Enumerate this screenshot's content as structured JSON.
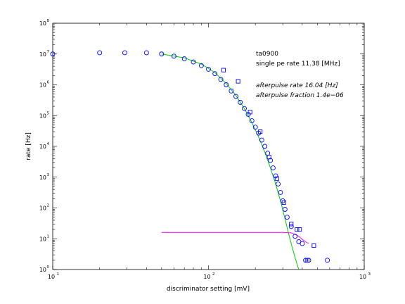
{
  "chart_data": {
    "type": "scatter",
    "xlabel": "discriminator setting [mV]",
    "ylabel": "rate [Hz]",
    "x_scale": "log",
    "y_scale": "log",
    "xlim": [
      10,
      1000
    ],
    "ylim": [
      1,
      100000000
    ],
    "grid": false,
    "legend": "none",
    "x_ticks": [
      {
        "base": "10",
        "exp": "1",
        "value": 10
      },
      {
        "base": "10",
        "exp": "2",
        "value": 100
      },
      {
        "base": "10",
        "exp": "3",
        "value": 1000
      }
    ],
    "y_ticks": [
      {
        "base": "10",
        "exp": "0",
        "value": 1
      },
      {
        "base": "10",
        "exp": "1",
        "value": 10
      },
      {
        "base": "10",
        "exp": "2",
        "value": 100
      },
      {
        "base": "10",
        "exp": "3",
        "value": 1000
      },
      {
        "base": "10",
        "exp": "4",
        "value": 10000
      },
      {
        "base": "10",
        "exp": "5",
        "value": 100000
      },
      {
        "base": "10",
        "exp": "6",
        "value": 1000000
      },
      {
        "base": "10",
        "exp": "7",
        "value": 10000000
      },
      {
        "base": "10",
        "exp": "8",
        "value": 100000000
      }
    ],
    "annotations": [
      {
        "text": "ta0900",
        "style": "normal"
      },
      {
        "text": "single pe rate 11.38 [MHz]",
        "style": "normal"
      },
      {
        "text": "afterpulse rate 16.04 [Hz]",
        "style": "italic"
      },
      {
        "text": "afterpulse fraction 1.4e−06",
        "style": "italic"
      }
    ],
    "series": [
      {
        "marker": "circle",
        "color": "#0000ff",
        "points": [
          [
            10,
            10000000
          ],
          [
            20,
            11000000
          ],
          [
            29,
            11000000
          ],
          [
            40,
            11000000
          ],
          [
            50,
            10000000
          ],
          [
            60,
            8500000
          ],
          [
            70,
            7000000
          ],
          [
            80,
            5500000
          ],
          [
            90,
            4200000
          ],
          [
            100,
            3200000
          ],
          [
            110,
            2300000
          ],
          [
            120,
            1500000
          ],
          [
            130,
            1000000
          ],
          [
            140,
            630000
          ],
          [
            150,
            420000
          ],
          [
            160,
            270000
          ],
          [
            170,
            170000
          ],
          [
            180,
            110000
          ],
          [
            190,
            68000
          ],
          [
            200,
            42000
          ],
          [
            210,
            27000
          ],
          [
            220,
            16000
          ],
          [
            230,
            10000
          ],
          [
            240,
            6000
          ],
          [
            250,
            3500
          ],
          [
            260,
            2000
          ],
          [
            270,
            1100
          ],
          [
            280,
            600
          ],
          [
            290,
            320
          ],
          [
            300,
            170
          ],
          [
            310,
            90
          ],
          [
            320,
            50
          ],
          [
            340,
            25
          ],
          [
            360,
            12
          ],
          [
            380,
            8
          ],
          [
            400,
            7
          ],
          [
            420,
            2
          ],
          [
            440,
            2
          ],
          [
            580,
            2
          ]
        ]
      },
      {
        "marker": "square",
        "color": "#0000ff",
        "points": [
          [
            125,
            3000000
          ],
          [
            155,
            1300000
          ],
          [
            185,
            130000
          ],
          [
            215,
            30000
          ],
          [
            245,
            4500
          ],
          [
            275,
            900
          ],
          [
            305,
            150
          ],
          [
            340,
            30
          ],
          [
            370,
            20
          ],
          [
            385,
            20
          ],
          [
            430,
            2
          ],
          [
            475,
            6
          ]
        ]
      }
    ],
    "lines": [
      {
        "name": "",
        "color": "#00cc00",
        "points": [
          [
            50,
            10000000
          ],
          [
            70,
            7500000
          ],
          [
            90,
            4700000
          ],
          [
            110,
            2500000
          ],
          [
            130,
            1100000
          ],
          [
            150,
            450000
          ],
          [
            170,
            170000
          ],
          [
            190,
            60000
          ],
          [
            210,
            20000
          ],
          [
            230,
            6500
          ],
          [
            250,
            2000
          ],
          [
            270,
            600
          ],
          [
            290,
            170
          ],
          [
            310,
            45
          ],
          [
            330,
            12
          ],
          [
            350,
            4
          ],
          [
            370,
            1.5
          ],
          [
            380,
            1
          ]
        ]
      },
      {
        "name": "",
        "color": "#ff00ff",
        "points": [
          [
            50,
            16
          ],
          [
            100,
            16
          ],
          [
            200,
            16
          ],
          [
            300,
            16
          ],
          [
            340,
            15.5
          ],
          [
            360,
            14
          ],
          [
            380,
            12
          ],
          [
            400,
            9.5
          ],
          [
            420,
            8
          ],
          [
            440,
            7
          ]
        ]
      }
    ]
  }
}
